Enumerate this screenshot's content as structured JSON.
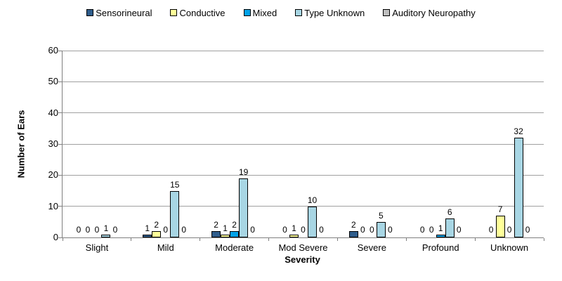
{
  "chart_data": {
    "type": "bar",
    "title": "",
    "xlabel": "Severity",
    "ylabel": "Number of Ears",
    "ylim": [
      0,
      60
    ],
    "yticks": [
      0,
      10,
      20,
      30,
      40,
      50,
      60
    ],
    "grid": true,
    "legend_position": "top",
    "value_labels": true,
    "categories": [
      "Slight",
      "Mild",
      "Moderate",
      "Mod Severe",
      "Severe",
      "Profound",
      "Unknown"
    ],
    "series": [
      {
        "name": "Sensorineural",
        "color": "#2f5d8c",
        "values": [
          0,
          1,
          2,
          0,
          2,
          0,
          0
        ]
      },
      {
        "name": "Conductive",
        "color": "#ffff99",
        "values": [
          0,
          2,
          1,
          1,
          0,
          0,
          7
        ]
      },
      {
        "name": "Mixed",
        "color": "#00a2e8",
        "values": [
          0,
          0,
          2,
          0,
          0,
          1,
          0
        ]
      },
      {
        "name": "Type Unknown",
        "color": "#a8d6e4",
        "values": [
          1,
          15,
          19,
          10,
          5,
          6,
          32
        ]
      },
      {
        "name": "Auditory Neuropathy",
        "color": "#bfbfbf",
        "values": [
          0,
          0,
          0,
          0,
          0,
          0,
          0
        ]
      }
    ],
    "colors": {
      "axis": "#808080",
      "gridline": "#a0a0a0",
      "bar_border": "#000000",
      "text": "#000000",
      "background": "#ffffff"
    }
  }
}
